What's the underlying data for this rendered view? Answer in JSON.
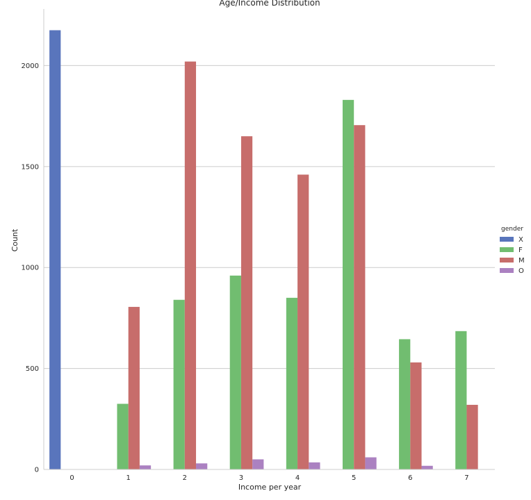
{
  "chart_data": {
    "type": "bar",
    "title": "Age/Income Distribution",
    "xlabel": "Income per year",
    "ylabel": "Count",
    "categories": [
      "0",
      "1",
      "2",
      "3",
      "4",
      "5",
      "6",
      "7"
    ],
    "yticks": [
      0,
      500,
      1000,
      1500,
      2000
    ],
    "ylim": [
      0,
      2280
    ],
    "grid": "horizontal",
    "legend_title": "gender",
    "legend_position": "right",
    "series": [
      {
        "name": "X",
        "color": "#5975bc",
        "values": [
          2175,
          0,
          0,
          0,
          0,
          0,
          0,
          0
        ]
      },
      {
        "name": "F",
        "color": "#71bd70",
        "values": [
          0,
          325,
          840,
          960,
          850,
          1830,
          645,
          685
        ]
      },
      {
        "name": "M",
        "color": "#c76d6b",
        "values": [
          0,
          805,
          2020,
          1650,
          1460,
          1705,
          530,
          320
        ]
      },
      {
        "name": "O",
        "color": "#ab81c1",
        "values": [
          0,
          20,
          30,
          50,
          35,
          60,
          18,
          0
        ]
      }
    ]
  }
}
